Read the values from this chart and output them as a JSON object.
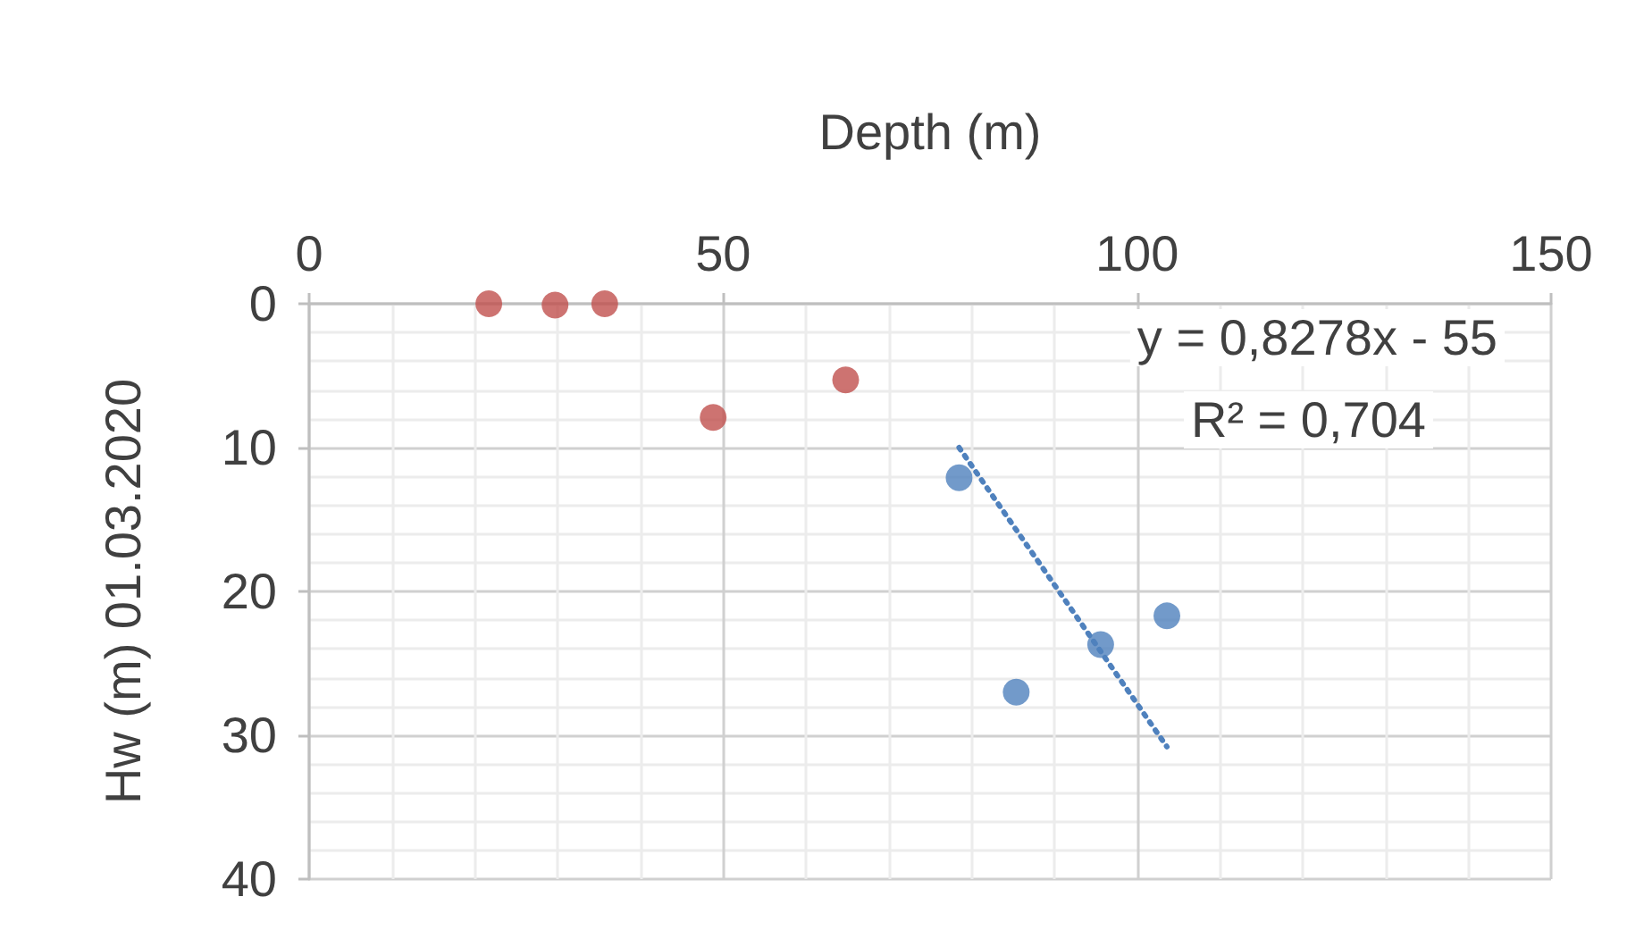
{
  "chart_data": {
    "type": "scatter",
    "xlabel": "Depth (m)",
    "ylabel": "Hw (m) 01.03.2020",
    "xlim": [
      0,
      150
    ],
    "xticks": [
      0,
      50,
      100,
      150
    ],
    "ylim": [
      40,
      0
    ],
    "yticks": [
      0,
      10,
      20,
      30,
      40
    ],
    "grid": true,
    "marker": "circle",
    "series": [
      {
        "color": "#c0504d",
        "x": [
          21.7,
          29.7,
          35.7,
          48.8,
          64.8
        ],
        "values": [
          0,
          0.1,
          0,
          7.9,
          5.3
        ]
      },
      {
        "color": "#4f81bd",
        "x": [
          78.5,
          85.4,
          95.6,
          103.6
        ],
        "values": [
          12.1,
          27.0,
          23.7,
          21.7
        ]
      },
      {
        "type": "line",
        "color": "#4f81bd",
        "line_style": "dotted",
        "marker": "none",
        "x": [
          78.5,
          103.6
        ],
        "values": [
          10,
          30.8
        ]
      }
    ],
    "annotations": [
      "y = 0,8278x - 55",
      "R² = 0,704"
    ]
  }
}
